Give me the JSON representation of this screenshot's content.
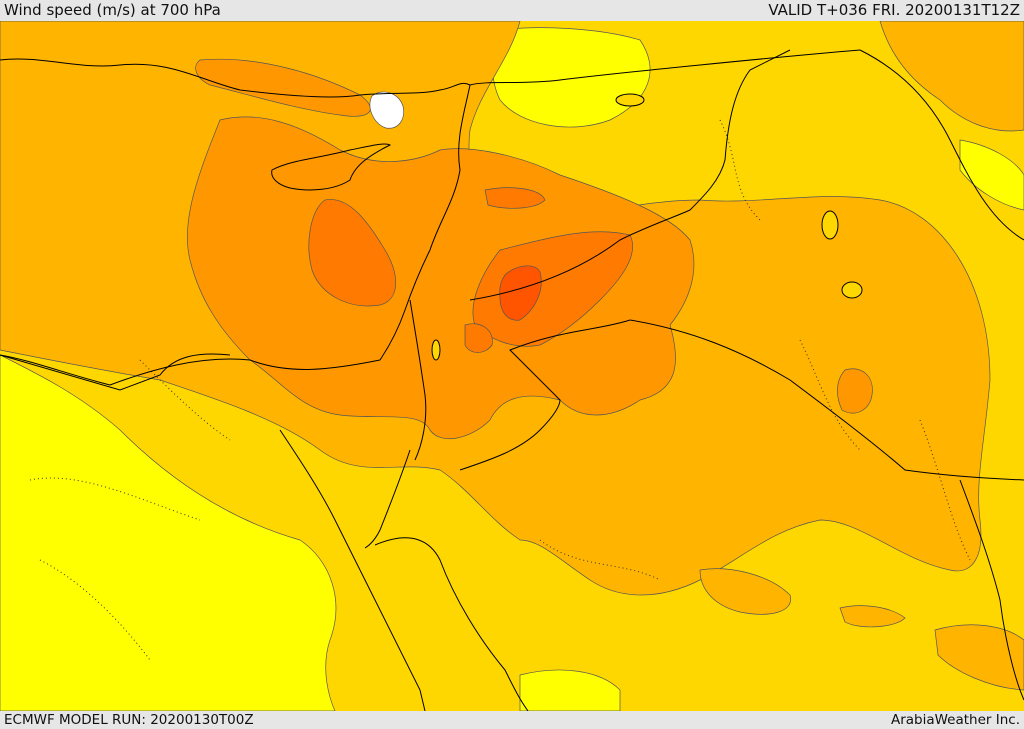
{
  "header": {
    "title": "Wind speed (m/s) at 700 hPa",
    "valid": "VALID T+036 FRI. 20200131T12Z"
  },
  "footer": {
    "model_run": "ECMWF MODEL RUN: 20200130T00Z",
    "credit": "ArabiaWeather Inc."
  },
  "colors": {
    "band_low": "#ffff00",
    "band_2": "#ffd700",
    "band_3": "#ffb400",
    "band_4": "#ff9800",
    "band_5": "#ff7a00",
    "band_max": "#ff5500",
    "calm": "#ffffff",
    "border": "#000000"
  }
}
